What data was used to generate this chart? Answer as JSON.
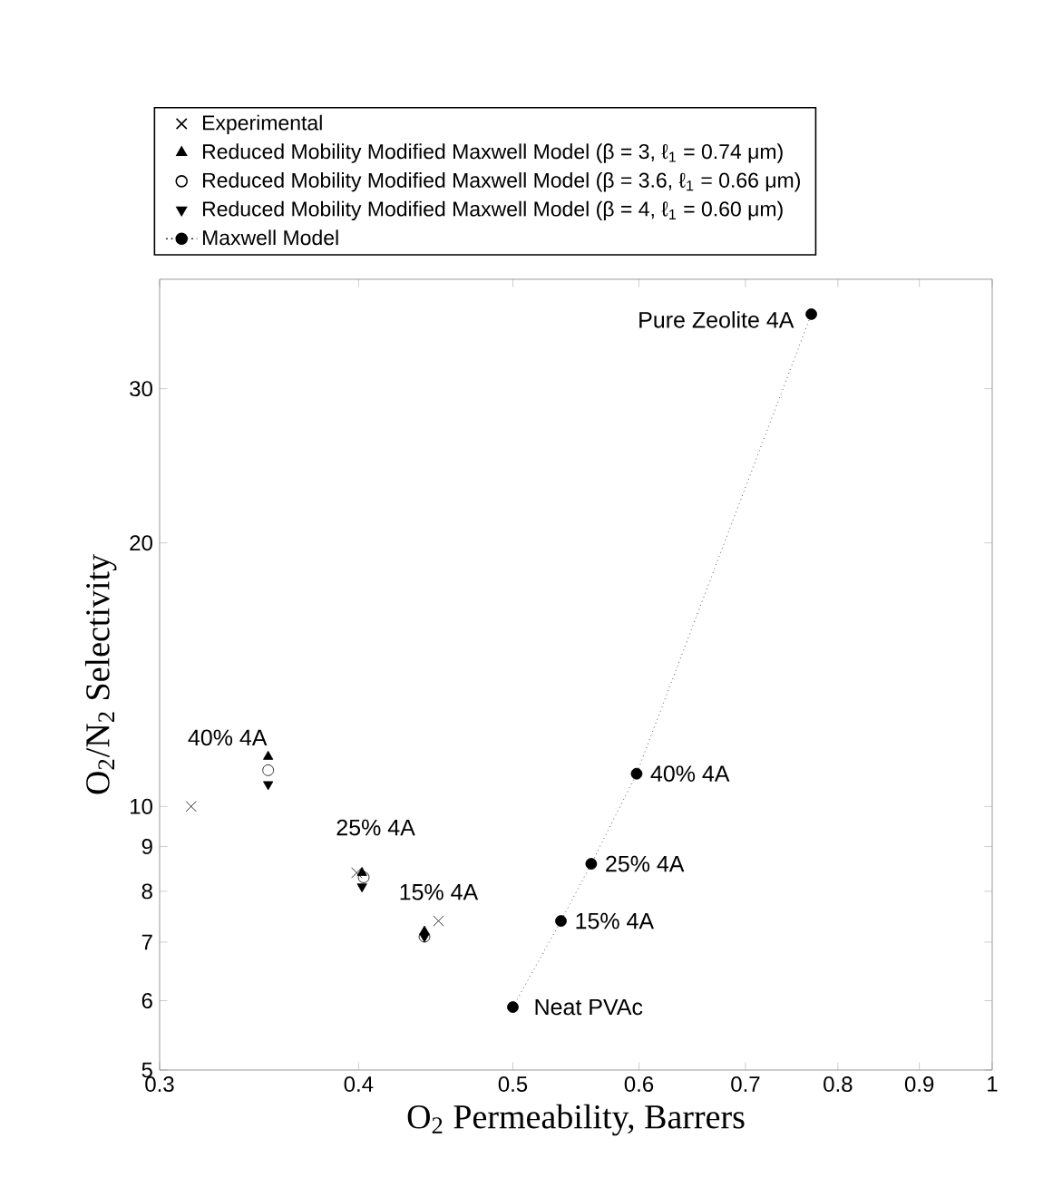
{
  "chart_data": {
    "type": "scatter",
    "xlabel": "O$_{2}$ Permeability, Barrers",
    "ylabel": "O$_{2}$/N$_{2}$ Selectivity",
    "log": "xy",
    "xlim": [
      0.3,
      1
    ],
    "ylim": [
      5,
      40
    ],
    "xticks": [
      0.3,
      0.4,
      0.5,
      0.6,
      0.7,
      0.8,
      0.9,
      1
    ],
    "yticks": [
      5,
      6,
      7,
      8,
      9,
      10,
      20,
      30
    ],
    "legend": "top",
    "series": [
      {
        "name": "Experimental",
        "marker": "cross",
        "color": "#000000",
        "x": [
          0.314,
          0.399,
          0.449
        ],
        "values": [
          10.0,
          8.4,
          7.4
        ]
      },
      {
        "name": "Reduced Mobility Modified Maxwell Model (β = 3, ℓ$_{1}$ = 0.74 μm)",
        "marker": "triangle",
        "color": "#000000",
        "x": [
          0.351,
          0.402,
          0.44
        ],
        "values": [
          11.4,
          8.4,
          7.2
        ]
      },
      {
        "name": "Reduced Mobility Modified Maxwell Model (β = 3.6, ℓ$_{1}$ = 0.66 μm)",
        "marker": "circle",
        "color": "#000000",
        "x": [
          0.351,
          0.403,
          0.44
        ],
        "values": [
          11.0,
          8.3,
          7.1
        ]
      },
      {
        "name": "Reduced Mobility Modified Maxwell Model (β = 4, ℓ$_{1}$ = 0.60 μm)",
        "marker": "triangle",
        "color": "#000000",
        "x": [
          0.351,
          0.402,
          0.44
        ],
        "values": [
          10.6,
          8.1,
          7.1
        ]
      },
      {
        "name": "Maxwell Model",
        "type": "line",
        "marker": "circle",
        "line_style": "dotted",
        "color": "#000000",
        "x": [
          0.5,
          0.536,
          0.56,
          0.598,
          0.77
        ],
        "values": [
          5.9,
          7.4,
          8.6,
          10.9,
          36.5
        ]
      }
    ],
    "annotations": [
      {
        "text": "Pure Zeolite 4A",
        "x": 0.77,
        "y": 36.5
      },
      {
        "text": "40% 4A",
        "x": 0.598,
        "y": 10.9
      },
      {
        "text": "25% 4A",
        "x": 0.56,
        "y": 8.6
      },
      {
        "text": "15% 4A",
        "x": 0.536,
        "y": 7.4
      },
      {
        "text": "Neat PVAc",
        "x": 0.5,
        "y": 5.9
      },
      {
        "text": "40% 4A",
        "x": 0.314,
        "y": 10.0
      },
      {
        "text": "25% 4A",
        "x": 0.399,
        "y": 8.4
      },
      {
        "text": "15% 4A",
        "x": 0.449,
        "y": 7.4
      }
    ]
  }
}
